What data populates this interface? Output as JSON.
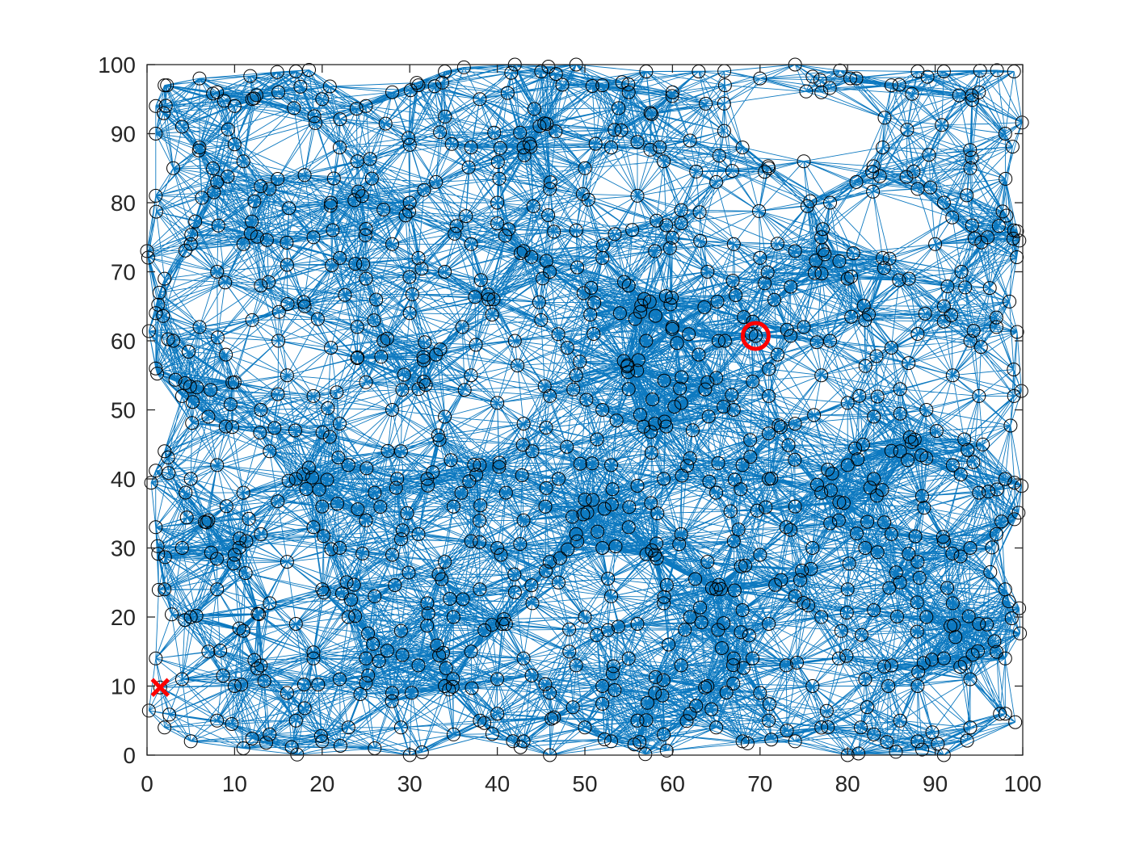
{
  "chart_data": {
    "type": "scatter",
    "title": "",
    "xlabel": "",
    "ylabel": "",
    "xlim": [
      0,
      100
    ],
    "ylim": [
      0,
      100
    ],
    "xticks": [
      0,
      10,
      20,
      30,
      40,
      50,
      60,
      70,
      80,
      90,
      100
    ],
    "yticks": [
      0,
      10,
      20,
      30,
      40,
      50,
      60,
      70,
      80,
      90,
      100
    ],
    "grid": false,
    "legend": "none",
    "connectivity": "each node linked to its nearby neighbours within radius 10",
    "connection_radius": 10,
    "node_count": 1000,
    "start_point": {
      "x": 1.5,
      "y": 9.8,
      "marker": "x"
    },
    "goal_point": {
      "x": 69.5,
      "y": 60.7,
      "marker": "o"
    },
    "sample_nodes": [
      [
        2,
        97
      ],
      [
        1,
        94
      ],
      [
        1,
        90
      ],
      [
        4,
        91
      ],
      [
        6,
        98
      ],
      [
        8,
        96
      ],
      [
        10,
        94
      ],
      [
        12,
        95
      ],
      [
        15,
        96
      ],
      [
        17,
        99
      ],
      [
        20,
        95
      ],
      [
        22,
        88
      ],
      [
        25,
        94
      ],
      [
        28,
        96
      ],
      [
        31,
        97
      ],
      [
        34,
        99
      ],
      [
        38,
        95
      ],
      [
        42,
        100
      ],
      [
        45,
        99
      ],
      [
        49,
        100
      ],
      [
        52,
        97
      ],
      [
        55,
        96
      ],
      [
        57,
        99
      ],
      [
        60,
        96
      ],
      [
        63,
        99
      ],
      [
        66,
        97
      ],
      [
        70,
        98
      ],
      [
        74,
        100
      ],
      [
        77,
        96
      ],
      [
        81,
        98
      ],
      [
        85,
        97
      ],
      [
        88,
        99
      ],
      [
        91,
        99
      ],
      [
        95,
        96
      ],
      [
        99,
        99
      ],
      [
        1,
        81
      ],
      [
        3,
        85
      ],
      [
        6,
        88
      ],
      [
        8,
        83
      ],
      [
        11,
        86
      ],
      [
        14,
        82
      ],
      [
        18,
        84
      ],
      [
        21,
        80
      ],
      [
        24,
        86
      ],
      [
        27,
        79
      ],
      [
        30,
        80
      ],
      [
        33,
        83
      ],
      [
        37,
        88
      ],
      [
        40,
        80
      ],
      [
        43,
        88
      ],
      [
        46,
        82
      ],
      [
        50,
        85
      ],
      [
        53,
        88
      ],
      [
        56,
        81
      ],
      [
        59,
        86
      ],
      [
        62,
        89
      ],
      [
        65,
        83
      ],
      [
        68,
        88
      ],
      [
        71,
        85
      ],
      [
        75,
        86
      ],
      [
        78,
        80
      ],
      [
        81,
        83
      ],
      [
        84,
        88
      ],
      [
        88,
        82
      ],
      [
        91,
        80
      ],
      [
        94,
        85
      ],
      [
        98,
        90
      ],
      [
        0,
        73
      ],
      [
        2,
        69
      ],
      [
        5,
        74
      ],
      [
        8,
        70
      ],
      [
        11,
        74
      ],
      [
        13,
        68
      ],
      [
        16,
        71
      ],
      [
        19,
        75
      ],
      [
        22,
        72
      ],
      [
        25,
        69
      ],
      [
        28,
        74
      ],
      [
        31,
        72
      ],
      [
        34,
        70
      ],
      [
        37,
        74
      ],
      [
        40,
        77
      ],
      [
        43,
        73
      ],
      [
        46,
        70
      ],
      [
        49,
        76
      ],
      [
        52,
        72
      ],
      [
        55,
        68
      ],
      [
        58,
        73
      ],
      [
        61,
        77
      ],
      [
        64,
        70
      ],
      [
        67,
        74
      ],
      [
        70,
        72
      ],
      [
        74,
        73
      ],
      [
        77,
        75
      ],
      [
        80,
        69
      ],
      [
        84,
        72
      ],
      [
        87,
        69
      ],
      [
        90,
        74
      ],
      [
        93,
        70
      ],
      [
        96,
        75
      ],
      [
        99,
        76
      ],
      [
        1,
        64
      ],
      [
        3,
        60
      ],
      [
        6,
        62
      ],
      [
        9,
        58
      ],
      [
        12,
        63
      ],
      [
        15,
        60
      ],
      [
        18,
        65
      ],
      [
        21,
        59
      ],
      [
        24,
        62
      ],
      [
        27,
        60
      ],
      [
        30,
        64
      ],
      [
        33,
        58
      ],
      [
        36,
        62
      ],
      [
        39,
        66
      ],
      [
        42,
        60
      ],
      [
        45,
        63
      ],
      [
        48,
        59
      ],
      [
        51,
        61
      ],
      [
        54,
        64
      ],
      [
        57,
        60
      ],
      [
        60,
        62
      ],
      [
        63,
        58
      ],
      [
        66,
        60
      ],
      [
        69,
        61
      ],
      [
        72,
        58
      ],
      [
        75,
        62
      ],
      [
        78,
        60
      ],
      [
        82,
        63
      ],
      [
        85,
        59
      ],
      [
        88,
        61
      ],
      [
        91,
        65
      ],
      [
        94,
        60
      ],
      [
        97,
        62
      ],
      [
        1,
        56
      ],
      [
        4,
        52
      ],
      [
        7,
        49
      ],
      [
        10,
        54
      ],
      [
        13,
        50
      ],
      [
        16,
        55
      ],
      [
        19,
        52
      ],
      [
        22,
        48
      ],
      [
        25,
        54
      ],
      [
        28,
        50
      ],
      [
        31,
        53
      ],
      [
        34,
        49
      ],
      [
        37,
        55
      ],
      [
        40,
        51
      ],
      [
        43,
        48
      ],
      [
        46,
        52
      ],
      [
        49,
        55
      ],
      [
        52,
        50
      ],
      [
        55,
        53
      ],
      [
        58,
        48
      ],
      [
        61,
        51
      ],
      [
        64,
        54
      ],
      [
        67,
        50
      ],
      [
        71,
        52
      ],
      [
        74,
        48
      ],
      [
        77,
        55
      ],
      [
        80,
        51
      ],
      [
        83,
        49
      ],
      [
        86,
        53
      ],
      [
        89,
        50
      ],
      [
        92,
        55
      ],
      [
        95,
        52
      ],
      [
        99,
        52
      ],
      [
        2,
        44
      ],
      [
        5,
        40
      ],
      [
        8,
        42
      ],
      [
        11,
        38
      ],
      [
        14,
        44
      ],
      [
        17,
        40
      ],
      [
        20,
        36
      ],
      [
        23,
        42
      ],
      [
        26,
        38
      ],
      [
        29,
        44
      ],
      [
        32,
        40
      ],
      [
        35,
        36
      ],
      [
        38,
        42
      ],
      [
        41,
        38
      ],
      [
        44,
        44
      ],
      [
        47,
        40
      ],
      [
        50,
        37
      ],
      [
        53,
        42
      ],
      [
        56,
        39
      ],
      [
        59,
        40
      ],
      [
        62,
        43
      ],
      [
        65,
        38
      ],
      [
        68,
        42
      ],
      [
        71,
        40
      ],
      [
        74,
        36
      ],
      [
        77,
        38
      ],
      [
        80,
        42
      ],
      [
        83,
        40
      ],
      [
        86,
        44
      ],
      [
        89,
        43
      ],
      [
        92,
        42
      ],
      [
        95,
        38
      ],
      [
        98,
        40
      ],
      [
        1,
        33
      ],
      [
        4,
        30
      ],
      [
        7,
        34
      ],
      [
        10,
        29
      ],
      [
        13,
        32
      ],
      [
        16,
        28
      ],
      [
        19,
        33
      ],
      [
        22,
        30
      ],
      [
        25,
        34
      ],
      [
        28,
        29
      ],
      [
        31,
        32
      ],
      [
        34,
        28
      ],
      [
        37,
        31
      ],
      [
        40,
        30
      ],
      [
        43,
        34
      ],
      [
        46,
        28
      ],
      [
        49,
        32
      ],
      [
        52,
        30
      ],
      [
        55,
        33
      ],
      [
        58,
        29
      ],
      [
        61,
        32
      ],
      [
        64,
        28
      ],
      [
        67,
        31
      ],
      [
        70,
        29
      ],
      [
        73,
        33
      ],
      [
        76,
        30
      ],
      [
        79,
        34
      ],
      [
        82,
        30
      ],
      [
        85,
        32
      ],
      [
        88,
        28
      ],
      [
        91,
        31
      ],
      [
        94,
        30
      ],
      [
        97,
        32
      ],
      [
        2,
        24
      ],
      [
        5,
        20
      ],
      [
        8,
        24
      ],
      [
        11,
        18
      ],
      [
        14,
        22
      ],
      [
        17,
        19
      ],
      [
        20,
        24
      ],
      [
        23,
        20
      ],
      [
        26,
        23
      ],
      [
        29,
        18
      ],
      [
        32,
        22
      ],
      [
        35,
        20
      ],
      [
        38,
        24
      ],
      [
        41,
        19
      ],
      [
        44,
        22
      ],
      [
        47,
        25
      ],
      [
        50,
        20
      ],
      [
        53,
        23
      ],
      [
        56,
        19
      ],
      [
        59,
        22
      ],
      [
        62,
        20
      ],
      [
        65,
        24
      ],
      [
        68,
        21
      ],
      [
        71,
        19
      ],
      [
        74,
        23
      ],
      [
        77,
        20
      ],
      [
        80,
        24
      ],
      [
        83,
        21
      ],
      [
        86,
        25
      ],
      [
        89,
        20
      ],
      [
        92,
        22
      ],
      [
        95,
        19
      ],
      [
        98,
        24
      ],
      [
        1,
        14
      ],
      [
        4,
        11
      ],
      [
        7,
        15
      ],
      [
        10,
        10
      ],
      [
        13,
        13
      ],
      [
        16,
        9
      ],
      [
        19,
        14
      ],
      [
        22,
        11
      ],
      [
        25,
        14
      ],
      [
        28,
        9
      ],
      [
        31,
        13
      ],
      [
        34,
        10
      ],
      [
        37,
        15
      ],
      [
        40,
        11
      ],
      [
        43,
        14
      ],
      [
        46,
        9
      ],
      [
        49,
        13
      ],
      [
        52,
        10
      ],
      [
        55,
        14
      ],
      [
        58,
        9
      ],
      [
        61,
        13
      ],
      [
        64,
        10
      ],
      [
        67,
        14
      ],
      [
        70,
        9
      ],
      [
        73,
        13
      ],
      [
        76,
        10
      ],
      [
        79,
        14
      ],
      [
        82,
        11
      ],
      [
        85,
        13
      ],
      [
        88,
        10
      ],
      [
        91,
        14
      ],
      [
        94,
        11
      ],
      [
        98,
        14
      ],
      [
        2,
        4
      ],
      [
        5,
        2
      ],
      [
        8,
        5
      ],
      [
        11,
        1
      ],
      [
        14,
        3
      ],
      [
        17,
        5
      ],
      [
        20,
        2
      ],
      [
        23,
        4
      ],
      [
        26,
        1
      ],
      [
        29,
        4
      ],
      [
        30,
        0
      ],
      [
        35,
        3
      ],
      [
        38,
        5
      ],
      [
        40,
        6
      ],
      [
        43,
        2
      ],
      [
        46,
        0
      ],
      [
        50,
        4
      ],
      [
        53,
        2
      ],
      [
        56,
        5
      ],
      [
        59,
        3
      ],
      [
        62,
        6
      ],
      [
        65,
        4
      ],
      [
        68,
        2
      ],
      [
        71,
        5
      ],
      [
        74,
        2
      ],
      [
        77,
        4
      ],
      [
        80,
        0
      ],
      [
        83,
        3
      ],
      [
        86,
        5
      ],
      [
        88,
        2
      ],
      [
        91,
        0
      ],
      [
        94,
        4
      ],
      [
        98,
        6
      ]
    ]
  }
}
